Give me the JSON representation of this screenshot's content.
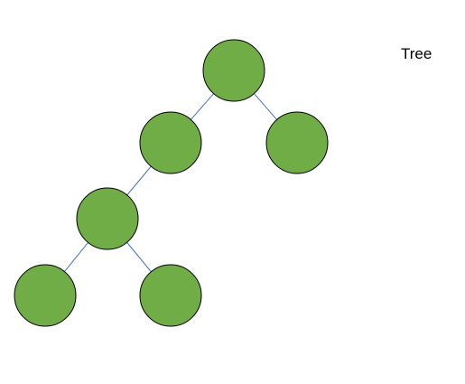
{
  "title": "Tree",
  "colors": {
    "node_fill": "#70AD47",
    "node_stroke": "#000000",
    "edge": "#4472C4"
  },
  "nodes": [
    {
      "id": "root"
    },
    {
      "id": "left-child"
    },
    {
      "id": "right-child"
    },
    {
      "id": "left-grandchild"
    },
    {
      "id": "leaf-left"
    },
    {
      "id": "leaf-right"
    }
  ],
  "edges": [
    {
      "from": "root",
      "to": "left-child"
    },
    {
      "from": "root",
      "to": "right-child"
    },
    {
      "from": "left-child",
      "to": "left-grandchild"
    },
    {
      "from": "left-grandchild",
      "to": "leaf-left"
    },
    {
      "from": "left-grandchild",
      "to": "leaf-right"
    }
  ]
}
